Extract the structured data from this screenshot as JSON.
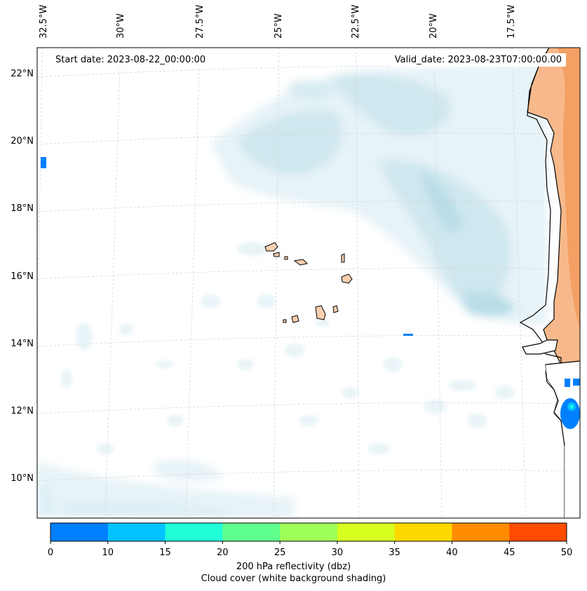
{
  "header": {
    "start_date": "Start date: 2023-08-22_00:00:00",
    "valid_date": "Valid_date: 2023-08-23T07:00:00.00"
  },
  "longitude_labels": [
    "32.5°W",
    "30°W",
    "27.5°W",
    "25°W",
    "22.5°W",
    "20°W",
    "17.5°W"
  ],
  "latitude_labels": [
    "22°N",
    "20°N",
    "18°N",
    "16°N",
    "14°N",
    "12°N",
    "10°N"
  ],
  "colorbar": {
    "ticks": [
      "0",
      "10",
      "15",
      "20",
      "25",
      "30",
      "35",
      "40",
      "45",
      "50"
    ],
    "colors": [
      "#0080ff",
      "#00c3ff",
      "#20ffd8",
      "#5fff8e",
      "#9dff58",
      "#d7ff1f",
      "#ffd800",
      "#ff8c00",
      "#ff4c00"
    ],
    "label": "200 hPa reflectivity (dbz)",
    "sublabel": "Cloud cover (white background shading)"
  },
  "map_colors": {
    "cloud_light": "#e6f3f7",
    "cloud_mid": "#cfe7ef",
    "cloud_dark": "#b9dde8",
    "land_sand": "#f7b98b",
    "land_orange": "#f29a5a",
    "island": "#f8cfb0",
    "reflectivity_blue": "#0080ff"
  }
}
